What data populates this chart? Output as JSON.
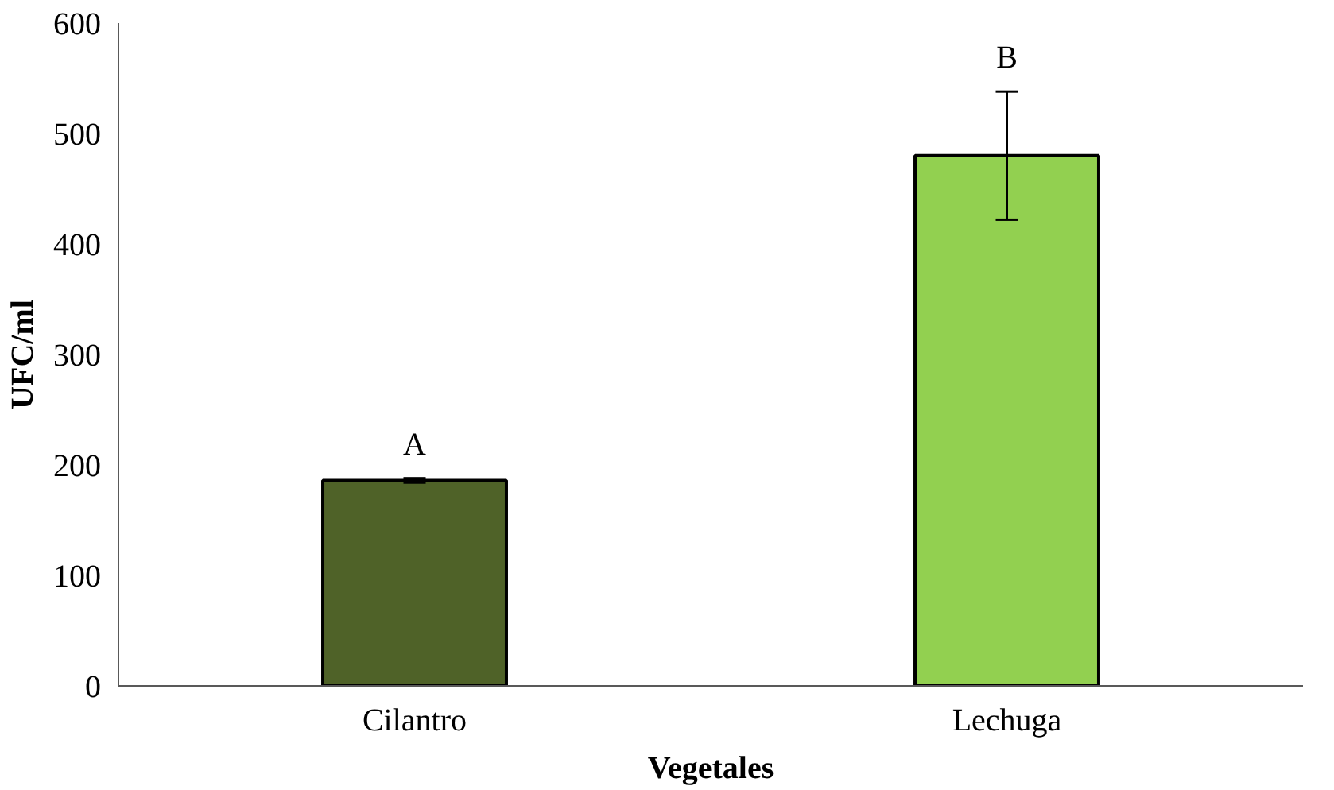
{
  "chart_data": {
    "type": "bar",
    "xlabel": "Vegetales",
    "ylabel": "UFC/ml",
    "categories": [
      "Cilantro",
      "Lechuga"
    ],
    "values": [
      186,
      480
    ],
    "colors": [
      "#4f6228",
      "#92d050"
    ],
    "errors": [
      2,
      58
    ],
    "ylim": [
      0,
      600
    ],
    "yticks": [
      0,
      100,
      200,
      300,
      400,
      500,
      600
    ],
    "grid": false,
    "annotations": [
      "A",
      "B"
    ]
  }
}
